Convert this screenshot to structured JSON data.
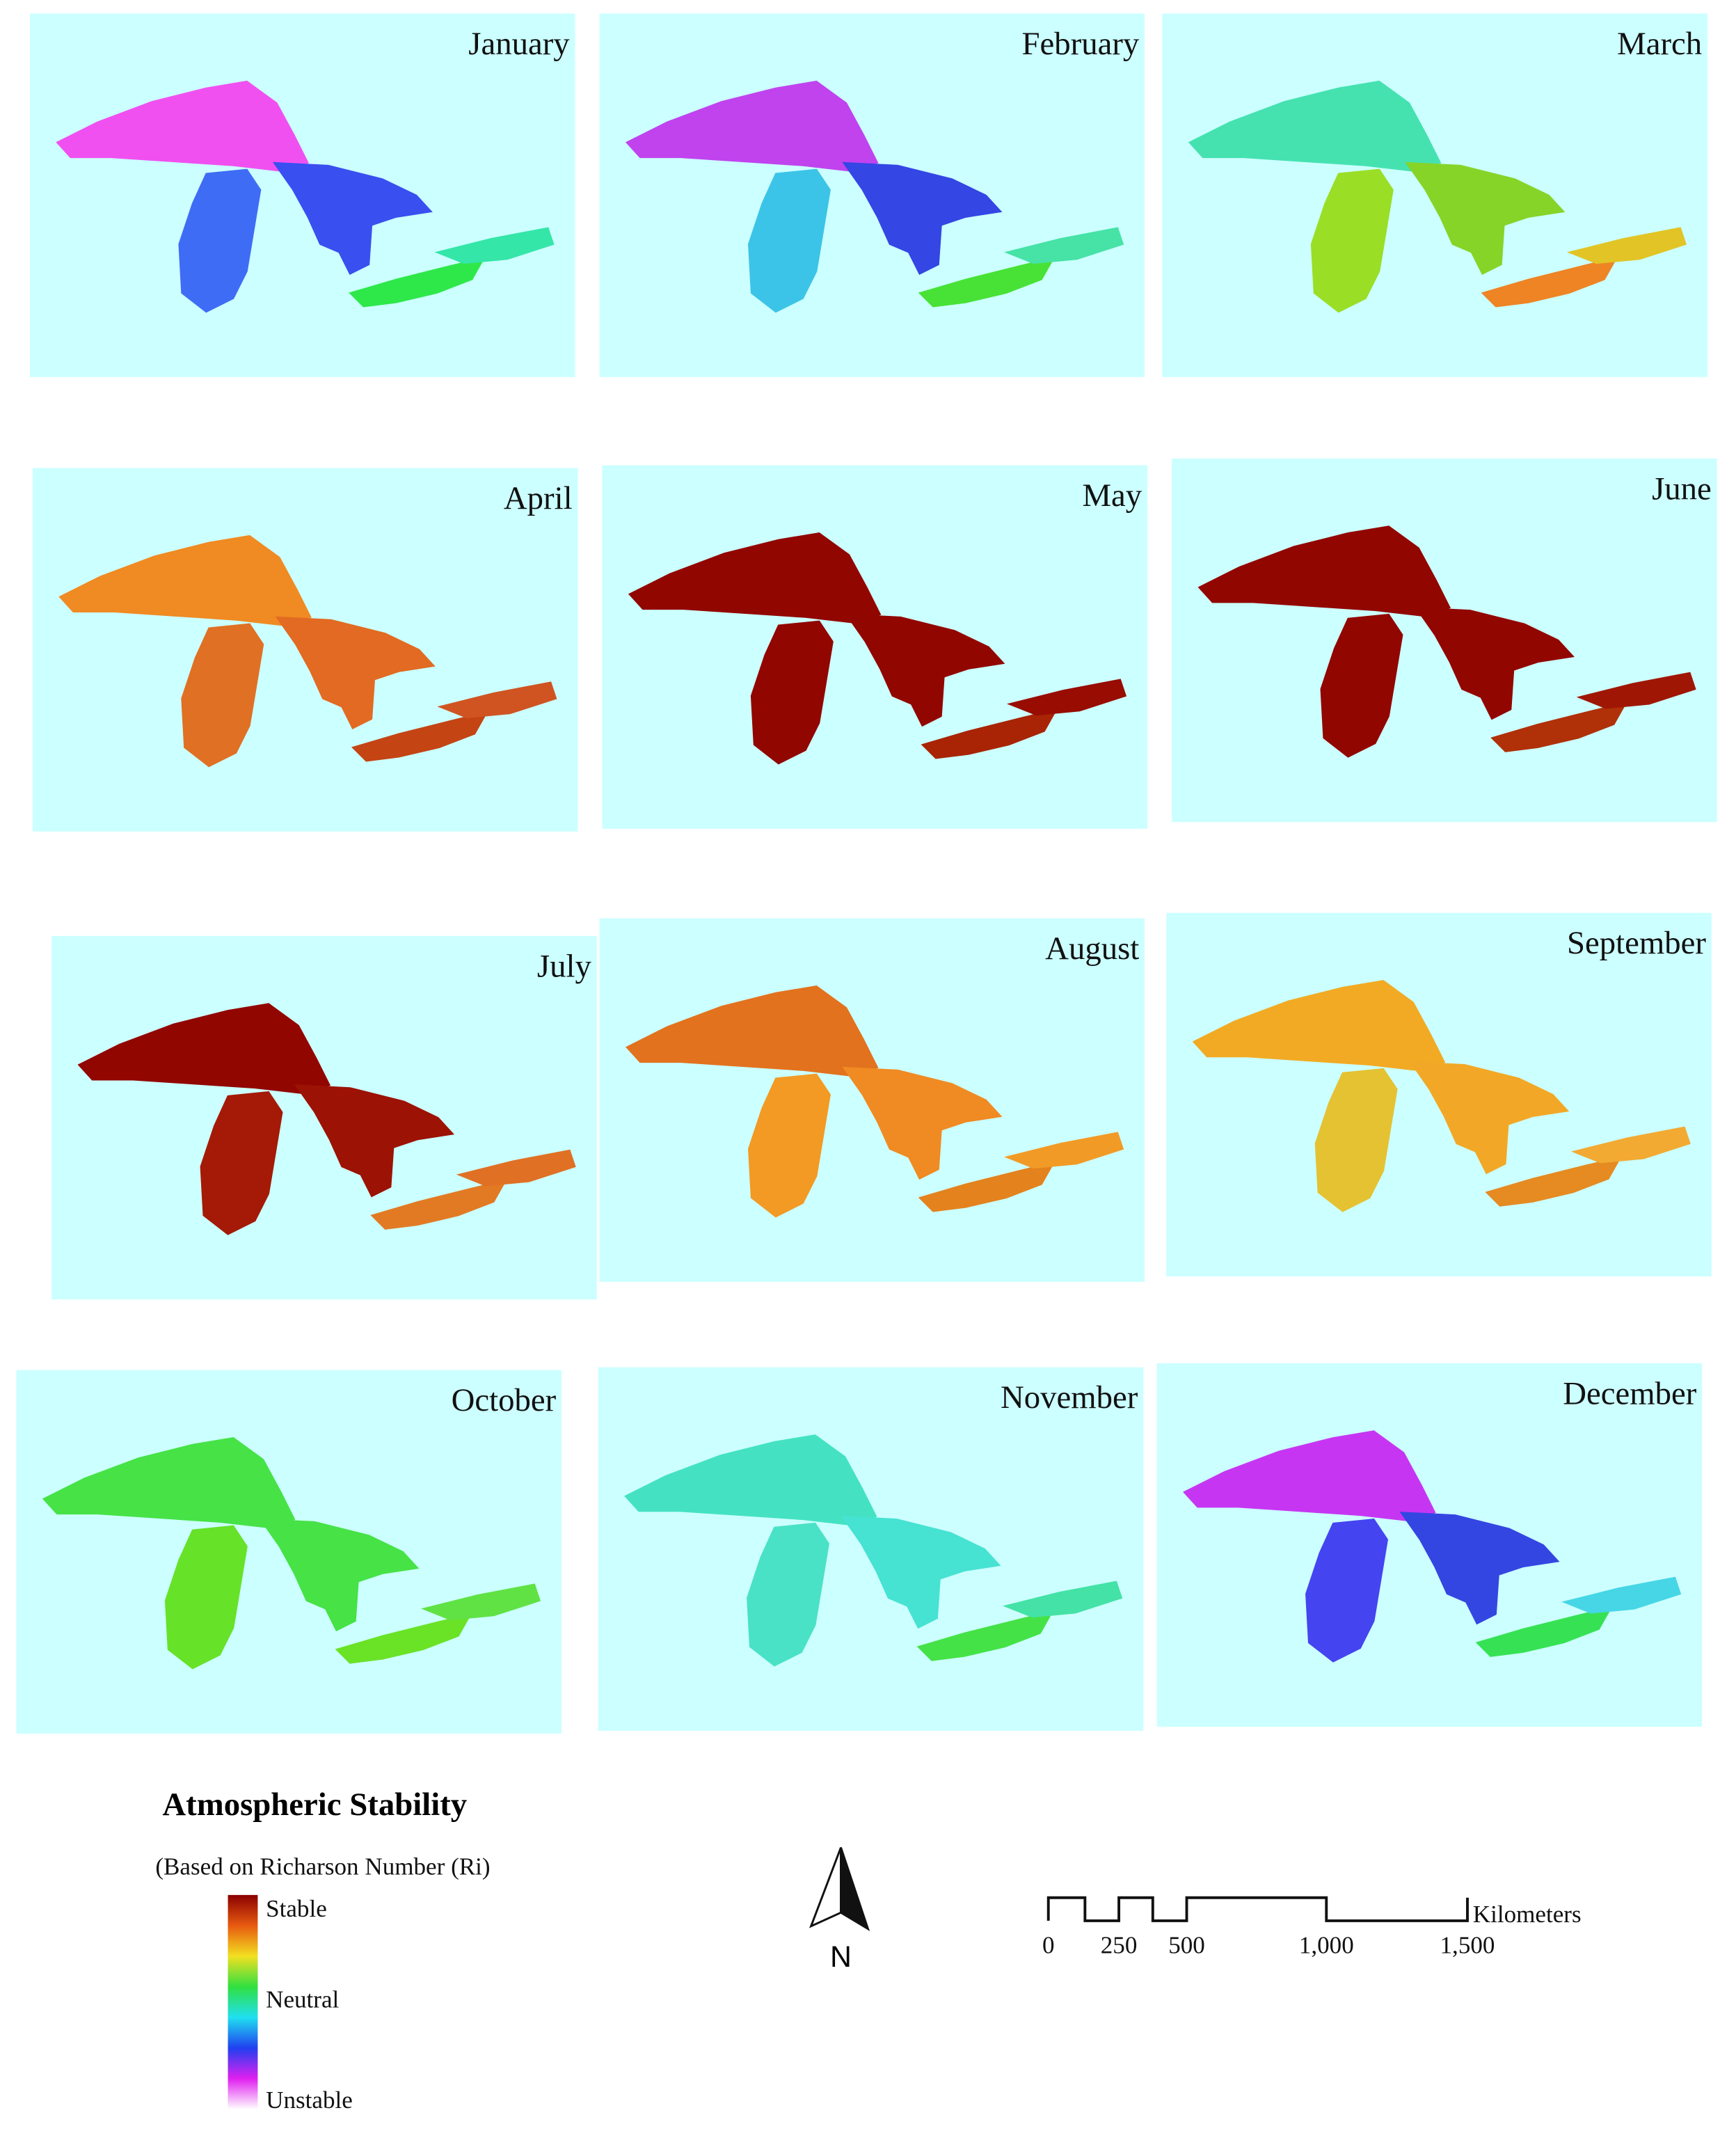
{
  "panels": [
    {
      "label": "January",
      "colors": [
        "#f050f0",
        "#3f6cf5",
        "#3a4ff0",
        "#2ee84a",
        "#34e6a8"
      ]
    },
    {
      "label": "February",
      "colors": [
        "#c043ee",
        "#3cc4e8",
        "#3446e4",
        "#48e236",
        "#46e2a6"
      ]
    },
    {
      "label": "March",
      "colors": [
        "#45e2b0",
        "#9ade26",
        "#86d428",
        "#ee8424",
        "#e2c426"
      ]
    },
    {
      "label": "April",
      "colors": [
        "#f08a22",
        "#e07024",
        "#e26a22",
        "#c44414",
        "#d05422"
      ]
    },
    {
      "label": "May",
      "colors": [
        "#920600",
        "#920600",
        "#920600",
        "#a82404",
        "#980c02"
      ]
    },
    {
      "label": "June",
      "colors": [
        "#920600",
        "#920600",
        "#920600",
        "#b03008",
        "#a01604"
      ]
    },
    {
      "label": "July",
      "colors": [
        "#920600",
        "#a41a06",
        "#9c1204",
        "#e27a24",
        "#e07024"
      ]
    },
    {
      "label": "August",
      "colors": [
        "#e2721e",
        "#f29a24",
        "#f08a22",
        "#e4821e",
        "#f29a26"
      ]
    },
    {
      "label": "September",
      "colors": [
        "#f2aa24",
        "#e4c232",
        "#f2a826",
        "#e68a22",
        "#f2aa32"
      ]
    },
    {
      "label": "October",
      "colors": [
        "#46e246",
        "#66e228",
        "#46e246",
        "#6ae226",
        "#60e244"
      ]
    },
    {
      "label": "November",
      "colors": [
        "#44e2c2",
        "#4ae2c6",
        "#46e2d2",
        "#44e246",
        "#44e2a6"
      ]
    },
    {
      "label": "December",
      "colors": [
        "#c636f2",
        "#4444f0",
        "#3446e2",
        "#36e254",
        "#46d6e6"
      ]
    }
  ],
  "legend": {
    "title": "Atmospheric Stability",
    "subtitle": "(Based on Richarson Number (Ri)",
    "labels": [
      "Stable",
      "Neutral",
      "Unstable"
    ],
    "colors": [
      "#8a0000",
      "#e85a10",
      "#f2e020",
      "#30e040",
      "#20e0f0",
      "#2040f0",
      "#e020f0",
      "#ffffff"
    ]
  },
  "north": "N",
  "scale": {
    "labels": [
      "0",
      "250",
      "500",
      "1,000",
      "1,500"
    ],
    "unit": "Kilometers"
  }
}
